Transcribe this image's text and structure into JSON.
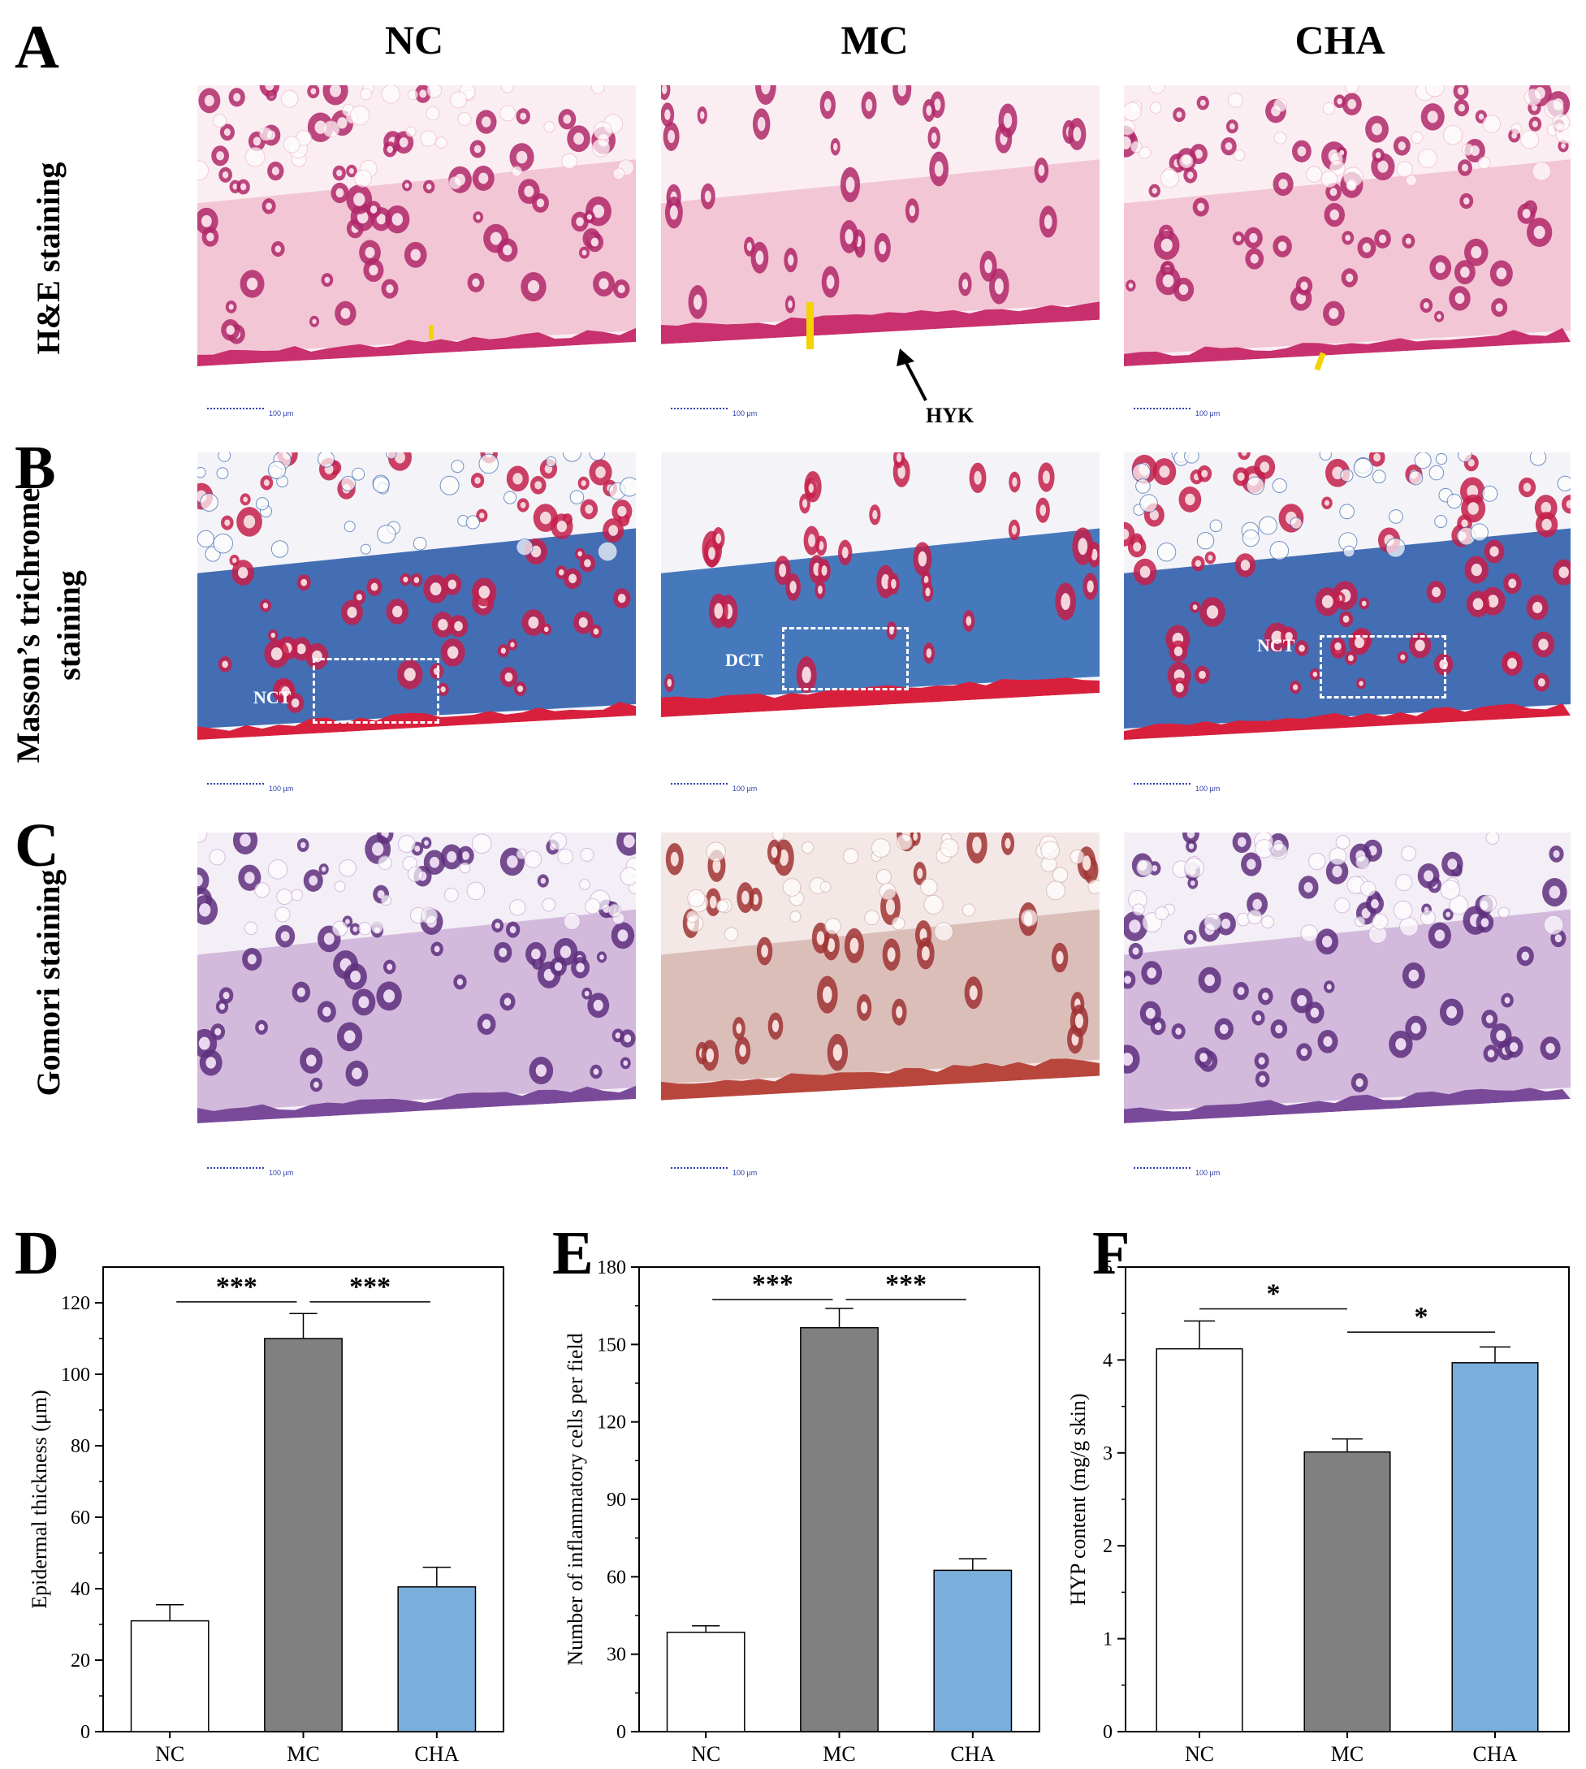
{
  "panels": {
    "A": "A",
    "B": "B",
    "C": "C",
    "D": "D",
    "E": "E",
    "F": "F"
  },
  "columns": [
    "NC",
    "MC",
    "CHA"
  ],
  "rows": {
    "he": "H&E staining",
    "masson_1": "Masson’s trichrome",
    "masson_2": "staining",
    "gomori": "Gomori staining"
  },
  "annotations": {
    "hyk": "HYK",
    "nct": "NCT",
    "dct": "DCT",
    "scale": "100 μm"
  },
  "colors": {
    "NC": "#ffffff",
    "MC": "#808080",
    "CHA": "#7aaedb",
    "he_bg": "#f2c6d6",
    "masson_bg": "#3f6db0",
    "gomori_mc_bg": "#c88a84",
    "gomori_bg": "#b48ac0"
  },
  "chart_data": [
    {
      "type": "bar",
      "panel": "D",
      "categories": [
        "NC",
        "MC",
        "CHA"
      ],
      "values": [
        31,
        110,
        40.5
      ],
      "errors": [
        4.5,
        7,
        5.5
      ],
      "ylabel": "Epidermal thickness (μm)",
      "ylim": [
        0,
        130
      ],
      "yticks": [
        0,
        20,
        40,
        60,
        80,
        100,
        120
      ],
      "significance": [
        {
          "from": 0,
          "to": 1,
          "label": "***"
        },
        {
          "from": 1,
          "to": 2,
          "label": "***"
        }
      ]
    },
    {
      "type": "bar",
      "panel": "E",
      "categories": [
        "NC",
        "MC",
        "CHA"
      ],
      "values": [
        38.5,
        156.5,
        62.5
      ],
      "errors": [
        2.5,
        7.5,
        4.5
      ],
      "ylabel": "Number of inflammatory cells per field",
      "ylim": [
        0,
        180
      ],
      "yticks": [
        0,
        30,
        60,
        90,
        120,
        150,
        180
      ],
      "significance": [
        {
          "from": 0,
          "to": 1,
          "label": "***"
        },
        {
          "from": 1,
          "to": 2,
          "label": "***"
        }
      ]
    },
    {
      "type": "bar",
      "panel": "F",
      "categories": [
        "NC",
        "MC",
        "CHA"
      ],
      "values": [
        4.12,
        3.01,
        3.97
      ],
      "errors": [
        0.3,
        0.14,
        0.17
      ],
      "ylabel": "HYP content (mg/g skin)",
      "ylim": [
        0,
        5
      ],
      "yticks": [
        0,
        1,
        2,
        3,
        4,
        5
      ],
      "significance": [
        {
          "from": 0,
          "to": 1,
          "label": "*"
        },
        {
          "from": 1,
          "to": 2,
          "label": "*"
        }
      ]
    }
  ]
}
